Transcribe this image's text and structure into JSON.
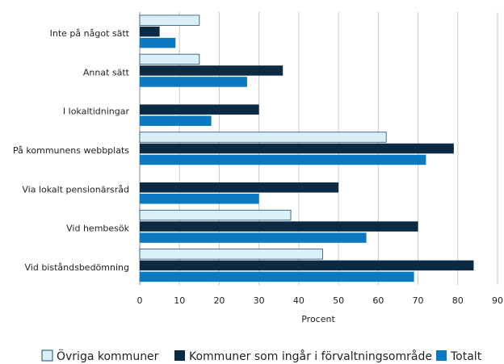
{
  "chart_data": {
    "type": "hbar",
    "categories": [
      "Inte på något sätt",
      "Annat sätt",
      "I lokaltidningar",
      "På kommunens webbplats",
      "Via lokalt pensionärsråd",
      "Vid hembesök",
      "Vid biståndsbedömning"
    ],
    "series": [
      {
        "name": "Övriga kommuner",
        "color": "#daf0f8",
        "values": [
          15,
          15,
          null,
          62,
          null,
          38,
          46
        ]
      },
      {
        "name": "Kommuner som ingår i förvaltningsområde",
        "color": "#0d2a45",
        "values": [
          5,
          36,
          30,
          79,
          50,
          70,
          84
        ]
      },
      {
        "name": "Totalt",
        "color": "#0a79c2",
        "values": [
          9,
          27,
          18,
          72,
          30,
          57,
          69
        ]
      }
    ],
    "xlabel": "Procent",
    "xlim": [
      0,
      90
    ],
    "xticks": [
      0,
      10,
      20,
      30,
      40,
      50,
      60,
      70,
      80,
      90
    ],
    "grid": true
  }
}
